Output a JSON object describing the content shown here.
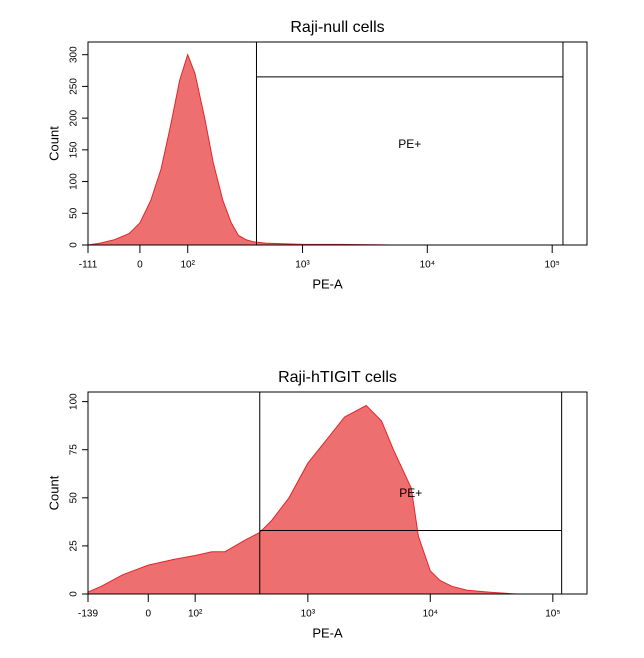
{
  "chart_data": [
    {
      "type": "area",
      "title": "Raji-null cells",
      "xlabel": "PE-A",
      "ylabel": "Count",
      "xscale": "biexponential",
      "color": "#ee6f6f",
      "line_color": "#e3262b",
      "x": [
        -111,
        -80,
        -50,
        -20,
        0,
        20,
        40,
        60,
        80,
        100,
        120,
        150,
        180,
        220,
        260,
        300,
        350,
        400,
        500,
        700,
        1000,
        2000,
        5000,
        10000,
        50000,
        150000
      ],
      "values": [
        0,
        3,
        8,
        18,
        35,
        70,
        120,
        190,
        260,
        300,
        270,
        200,
        130,
        70,
        35,
        15,
        8,
        5,
        3,
        2,
        1,
        1,
        0,
        0,
        0,
        0
      ],
      "xlim": [
        -111,
        190000
      ],
      "ylim": [
        0,
        320
      ],
      "xticks": [
        {
          "value": -111,
          "label": "-111"
        },
        0,
        {
          "value": 100,
          "label": "10²"
        },
        {
          "value": 1000,
          "label": "10³"
        },
        {
          "value": 10000,
          "label": "10⁴"
        },
        {
          "value": 100000,
          "label": "10⁵"
        }
      ],
      "yticks": [
        0,
        50,
        100,
        150,
        200,
        250,
        300
      ],
      "gate": {
        "label": "PE+",
        "x": [
          423,
          122000
        ],
        "y": 265
      }
    },
    {
      "type": "area",
      "title": "Raji-hTIGIT cells",
      "xlabel": "PE-A",
      "ylabel": "Count",
      "xscale": "biexponential",
      "color": "#ee6f6f",
      "line_color": "#e3262b",
      "x": [
        -139,
        -100,
        -50,
        0,
        50,
        100,
        150,
        200,
        300,
        400,
        500,
        700,
        1000,
        1500,
        2000,
        3000,
        4000,
        5000,
        7000,
        8000,
        10000,
        12000,
        15000,
        20000,
        30000,
        50000,
        100000,
        150000
      ],
      "values": [
        1,
        4,
        10,
        15,
        18,
        20,
        22,
        22,
        28,
        32,
        38,
        50,
        68,
        82,
        92,
        98,
        90,
        75,
        55,
        30,
        12,
        7,
        4,
        2,
        1,
        0,
        0,
        0
      ],
      "xlim": [
        -139,
        190000
      ],
      "ylim": [
        0,
        105
      ],
      "xticks": [
        {
          "value": -139,
          "label": "-139"
        },
        0,
        {
          "value": 100,
          "label": "10²"
        },
        {
          "value": 1000,
          "label": "10³"
        },
        {
          "value": 10000,
          "label": "10⁴"
        },
        {
          "value": 100000,
          "label": "10⁵"
        }
      ],
      "yticks": [
        0,
        25,
        50,
        75,
        100
      ],
      "gate": {
        "label": "PE+",
        "x": [
          400,
          118000
        ],
        "y": 33
      }
    }
  ]
}
